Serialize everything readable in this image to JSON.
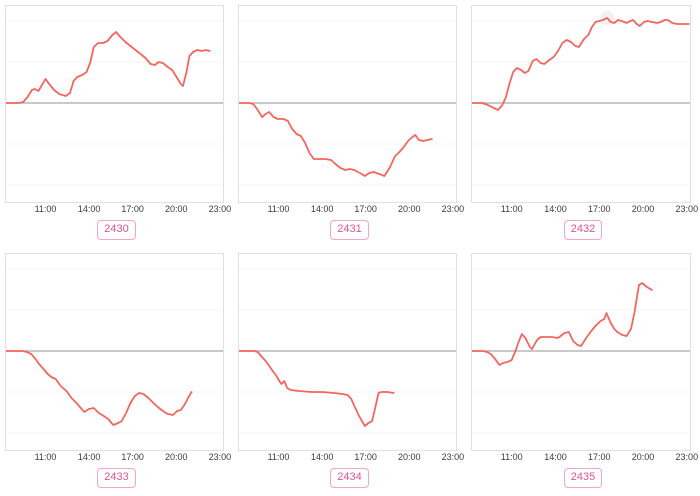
{
  "colors": {
    "line": "#f4655f",
    "zero_line": "#a9a9a9",
    "grid_line": "#f4f4f4",
    "box_border": "#e0e0e0",
    "tick_label": "#3a3a3a",
    "badge_text": "#e0548c",
    "badge_border": "#f6a6c3",
    "peak_halo": "#ebebeb"
  },
  "chart_data": [
    {
      "id": "2430",
      "type": "line",
      "x_ticks": [
        "11:00",
        "14:00",
        "17:00",
        "20:00",
        "23:00"
      ],
      "x_range_hours": [
        8.2,
        23.28
      ],
      "ylim": [
        -100,
        98
      ],
      "baseline": 0,
      "series": [
        {
          "name": "value",
          "points": [
            [
              8.2,
              0
            ],
            [
              9.1,
              0
            ],
            [
              9.4,
              1
            ],
            [
              9.7,
              6
            ],
            [
              10.0,
              13
            ],
            [
              10.2,
              14
            ],
            [
              10.45,
              12
            ],
            [
              10.7,
              18
            ],
            [
              10.95,
              24
            ],
            [
              11.2,
              19
            ],
            [
              11.55,
              13
            ],
            [
              11.9,
              9
            ],
            [
              12.35,
              7
            ],
            [
              12.65,
              10
            ],
            [
              12.9,
              22
            ],
            [
              13.15,
              26
            ],
            [
              13.5,
              28
            ],
            [
              13.8,
              31
            ],
            [
              14.05,
              40
            ],
            [
              14.3,
              56
            ],
            [
              14.6,
              60
            ],
            [
              14.95,
              60
            ],
            [
              15.25,
              62
            ],
            [
              15.6,
              68
            ],
            [
              15.85,
              71
            ],
            [
              16.15,
              66
            ],
            [
              16.5,
              61
            ],
            [
              16.85,
              57
            ],
            [
              17.2,
              53
            ],
            [
              17.55,
              49
            ],
            [
              17.9,
              45
            ],
            [
              18.25,
              39
            ],
            [
              18.55,
              38
            ],
            [
              18.8,
              41
            ],
            [
              19.1,
              40
            ],
            [
              19.45,
              36
            ],
            [
              19.75,
              33
            ],
            [
              20.05,
              26
            ],
            [
              20.35,
              19
            ],
            [
              20.5,
              17
            ],
            [
              20.75,
              31
            ],
            [
              20.95,
              47
            ],
            [
              21.2,
              51
            ],
            [
              21.5,
              53
            ],
            [
              21.8,
              52
            ],
            [
              22.1,
              53
            ],
            [
              22.35,
              52
            ]
          ]
        }
      ]
    },
    {
      "id": "2431",
      "type": "line",
      "x_ticks": [
        "11:00",
        "14:00",
        "17:00",
        "20:00",
        "23:00"
      ],
      "x_range_hours": [
        8.2,
        23.28
      ],
      "ylim": [
        -100,
        98
      ],
      "baseline": 0,
      "series": [
        {
          "name": "value",
          "points": [
            [
              8.2,
              0
            ],
            [
              8.9,
              0
            ],
            [
              9.2,
              -1
            ],
            [
              9.5,
              -7
            ],
            [
              9.8,
              -14
            ],
            [
              10.05,
              -11
            ],
            [
              10.3,
              -9
            ],
            [
              10.6,
              -14
            ],
            [
              10.9,
              -16
            ],
            [
              11.3,
              -16
            ],
            [
              11.6,
              -18
            ],
            [
              11.9,
              -26
            ],
            [
              12.2,
              -31
            ],
            [
              12.5,
              -33
            ],
            [
              12.8,
              -40
            ],
            [
              13.1,
              -50
            ],
            [
              13.4,
              -56
            ],
            [
              13.8,
              -56
            ],
            [
              14.2,
              -56
            ],
            [
              14.6,
              -57
            ],
            [
              14.9,
              -61
            ],
            [
              15.25,
              -65
            ],
            [
              15.6,
              -67
            ],
            [
              15.9,
              -66
            ],
            [
              16.2,
              -67
            ],
            [
              16.6,
              -70
            ],
            [
              16.95,
              -73
            ],
            [
              17.25,
              -70
            ],
            [
              17.55,
              -69
            ],
            [
              17.95,
              -71
            ],
            [
              18.3,
              -73
            ],
            [
              18.7,
              -64
            ],
            [
              19.05,
              -53
            ],
            [
              19.35,
              -49
            ],
            [
              19.65,
              -44
            ],
            [
              19.95,
              -38
            ],
            [
              20.25,
              -34
            ],
            [
              20.45,
              -32
            ],
            [
              20.7,
              -37
            ],
            [
              21.0,
              -38
            ],
            [
              21.3,
              -37
            ],
            [
              21.6,
              -36
            ]
          ]
        }
      ]
    },
    {
      "id": "2432",
      "type": "line",
      "x_ticks": [
        "11:00",
        "14:00",
        "17:00",
        "20:00",
        "23:00"
      ],
      "x_range_hours": [
        8.2,
        23.28
      ],
      "ylim": [
        -100,
        98
      ],
      "baseline": 0,
      "peak_marker": {
        "hour": 17.55,
        "value": 85
      },
      "series": [
        {
          "name": "value",
          "points": [
            [
              8.2,
              0
            ],
            [
              8.9,
              0
            ],
            [
              9.3,
              -2
            ],
            [
              9.7,
              -5
            ],
            [
              10.0,
              -7
            ],
            [
              10.3,
              -2
            ],
            [
              10.55,
              6
            ],
            [
              10.8,
              20
            ],
            [
              11.05,
              31
            ],
            [
              11.3,
              35
            ],
            [
              11.6,
              33
            ],
            [
              11.85,
              30
            ],
            [
              12.1,
              32
            ],
            [
              12.4,
              42
            ],
            [
              12.65,
              44
            ],
            [
              12.95,
              40
            ],
            [
              13.2,
              39
            ],
            [
              13.55,
              43
            ],
            [
              13.85,
              46
            ],
            [
              14.15,
              52
            ],
            [
              14.45,
              60
            ],
            [
              14.75,
              63
            ],
            [
              15.05,
              61
            ],
            [
              15.35,
              57
            ],
            [
              15.6,
              56
            ],
            [
              15.95,
              64
            ],
            [
              16.25,
              68
            ],
            [
              16.5,
              76
            ],
            [
              16.75,
              81
            ],
            [
              17.0,
              82
            ],
            [
              17.25,
              83
            ],
            [
              17.55,
              85
            ],
            [
              17.8,
              81
            ],
            [
              18.05,
              80
            ],
            [
              18.3,
              83
            ],
            [
              18.55,
              82
            ],
            [
              18.9,
              80
            ],
            [
              19.15,
              82
            ],
            [
              19.35,
              83
            ],
            [
              19.6,
              79
            ],
            [
              19.8,
              77
            ],
            [
              20.1,
              81
            ],
            [
              20.35,
              82
            ],
            [
              20.65,
              81
            ],
            [
              21.0,
              80
            ],
            [
              21.25,
              81
            ],
            [
              21.55,
              83
            ],
            [
              21.75,
              83
            ],
            [
              22.05,
              80
            ],
            [
              22.4,
              79
            ],
            [
              22.75,
              79
            ],
            [
              23.2,
              79
            ]
          ]
        }
      ]
    },
    {
      "id": "2433",
      "type": "line",
      "x_ticks": [
        "11:00",
        "14:00",
        "17:00",
        "20:00",
        "23:00"
      ],
      "x_range_hours": [
        8.2,
        23.28
      ],
      "ylim": [
        -100,
        98
      ],
      "baseline": 0,
      "series": [
        {
          "name": "value",
          "points": [
            [
              8.2,
              0
            ],
            [
              9.35,
              0
            ],
            [
              9.65,
              -1
            ],
            [
              9.95,
              -3
            ],
            [
              10.25,
              -8
            ],
            [
              10.5,
              -13
            ],
            [
              10.8,
              -18
            ],
            [
              11.1,
              -23
            ],
            [
              11.35,
              -26
            ],
            [
              11.65,
              -28
            ],
            [
              12.0,
              -35
            ],
            [
              12.4,
              -40
            ],
            [
              12.75,
              -47
            ],
            [
              13.1,
              -52
            ],
            [
              13.4,
              -57
            ],
            [
              13.65,
              -61
            ],
            [
              13.95,
              -58
            ],
            [
              14.3,
              -57
            ],
            [
              14.65,
              -62
            ],
            [
              15.0,
              -65
            ],
            [
              15.3,
              -68
            ],
            [
              15.65,
              -74
            ],
            [
              16.0,
              -72
            ],
            [
              16.25,
              -70
            ],
            [
              16.55,
              -62
            ],
            [
              16.85,
              -52
            ],
            [
              17.15,
              -45
            ],
            [
              17.45,
              -42
            ],
            [
              17.75,
              -43
            ],
            [
              18.1,
              -47
            ],
            [
              18.45,
              -52
            ],
            [
              18.75,
              -56
            ],
            [
              19.1,
              -60
            ],
            [
              19.45,
              -63
            ],
            [
              19.8,
              -64
            ],
            [
              20.1,
              -60
            ],
            [
              20.35,
              -59
            ],
            [
              20.6,
              -54
            ],
            [
              20.85,
              -47
            ],
            [
              21.1,
              -41
            ]
          ]
        }
      ]
    },
    {
      "id": "2434",
      "type": "line",
      "x_ticks": [
        "11:00",
        "14:00",
        "17:00",
        "20:00",
        "23:00"
      ],
      "x_range_hours": [
        8.2,
        23.28
      ],
      "ylim": [
        -100,
        98
      ],
      "baseline": 0,
      "series": [
        {
          "name": "value",
          "points": [
            [
              8.2,
              0
            ],
            [
              9.25,
              0
            ],
            [
              9.5,
              -1
            ],
            [
              9.8,
              -6
            ],
            [
              10.05,
              -10
            ],
            [
              10.3,
              -15
            ],
            [
              10.55,
              -20
            ],
            [
              10.8,
              -25
            ],
            [
              11.0,
              -30
            ],
            [
              11.15,
              -33
            ],
            [
              11.35,
              -30
            ],
            [
              11.55,
              -37
            ],
            [
              11.8,
              -39
            ],
            [
              12.4,
              -40
            ],
            [
              13.2,
              -41
            ],
            [
              14.0,
              -41
            ],
            [
              14.8,
              -42
            ],
            [
              15.4,
              -43
            ],
            [
              15.75,
              -44
            ],
            [
              16.0,
              -48
            ],
            [
              16.25,
              -56
            ],
            [
              16.55,
              -65
            ],
            [
              16.95,
              -75
            ],
            [
              17.2,
              -72
            ],
            [
              17.45,
              -70
            ],
            [
              17.7,
              -55
            ],
            [
              17.9,
              -42
            ],
            [
              18.1,
              -41
            ],
            [
              18.5,
              -41
            ],
            [
              18.95,
              -42
            ]
          ]
        }
      ]
    },
    {
      "id": "2435",
      "type": "line",
      "x_ticks": [
        "11:00",
        "14:00",
        "17:00",
        "20:00",
        "23:00"
      ],
      "x_range_hours": [
        8.2,
        23.28
      ],
      "ylim": [
        -100,
        98
      ],
      "baseline": 0,
      "series": [
        {
          "name": "value",
          "points": [
            [
              8.2,
              0
            ],
            [
              8.95,
              0
            ],
            [
              9.25,
              -1
            ],
            [
              9.5,
              -3
            ],
            [
              9.8,
              -8
            ],
            [
              10.1,
              -14
            ],
            [
              10.35,
              -12
            ],
            [
              10.65,
              -11
            ],
            [
              10.95,
              -9
            ],
            [
              11.2,
              0
            ],
            [
              11.45,
              10
            ],
            [
              11.65,
              17
            ],
            [
              11.9,
              13
            ],
            [
              12.2,
              4
            ],
            [
              12.35,
              2
            ],
            [
              12.7,
              11
            ],
            [
              12.95,
              14
            ],
            [
              13.35,
              14
            ],
            [
              13.75,
              14
            ],
            [
              14.1,
              13
            ],
            [
              14.25,
              14
            ],
            [
              14.6,
              18
            ],
            [
              14.9,
              19
            ],
            [
              15.2,
              10
            ],
            [
              15.5,
              6
            ],
            [
              15.75,
              5
            ],
            [
              16.1,
              13
            ],
            [
              16.45,
              20
            ],
            [
              16.8,
              26
            ],
            [
              17.1,
              30
            ],
            [
              17.35,
              32
            ],
            [
              17.5,
              38
            ],
            [
              17.8,
              28
            ],
            [
              18.05,
              22
            ],
            [
              18.25,
              19
            ],
            [
              18.6,
              16
            ],
            [
              18.9,
              15
            ],
            [
              19.2,
              22
            ],
            [
              19.45,
              39
            ],
            [
              19.75,
              66
            ],
            [
              19.97,
              68
            ],
            [
              20.3,
              64
            ],
            [
              20.65,
              61
            ]
          ]
        }
      ]
    }
  ]
}
